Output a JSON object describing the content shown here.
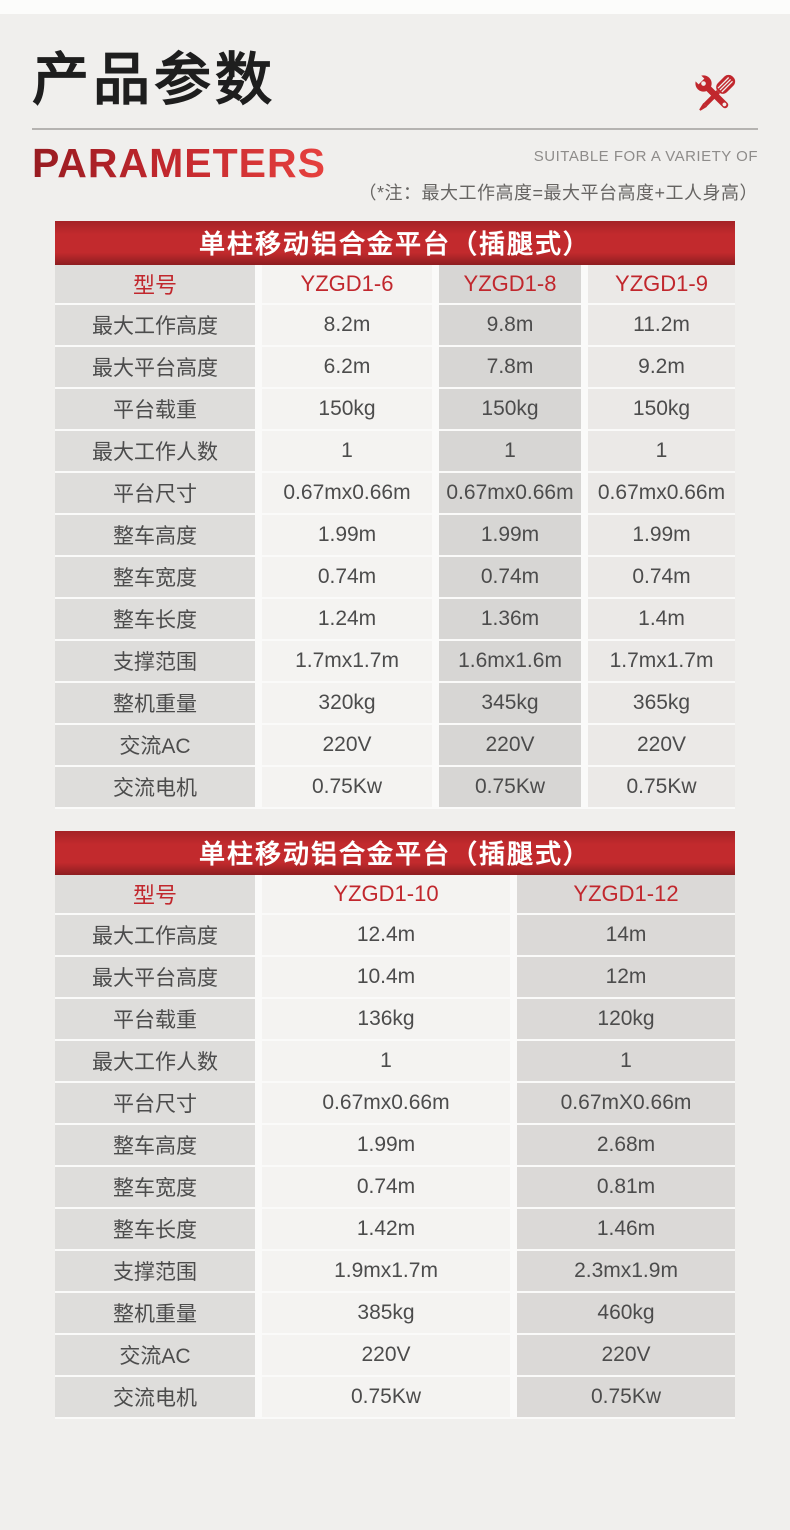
{
  "page": {
    "title_cn": "产品参数",
    "title_en": "PARAMETERS",
    "tagline": "SUITABLE FOR A VARIETY OF",
    "note": "（*注：最大工作高度=最大平台高度+工人身高）"
  },
  "colors": {
    "accent_red": "#c1272d",
    "band_top": "#a42226",
    "band_mid": "#c22a2d",
    "band_bottom": "#8d1d20",
    "page_bg": "#f0efed"
  },
  "icons": {
    "tools": "wrench-screwdriver-icon"
  },
  "tables": [
    {
      "title": "单柱移动铝合金平台（插腿式）",
      "model_label": "型号",
      "models": [
        "YZGD1-6",
        "YZGD1-8",
        "YZGD1-9"
      ],
      "col_colors": [
        "#dedddb",
        "#f4f3f1",
        "#d7d6d4",
        "#ebe9e7"
      ],
      "rows": [
        {
          "label": "最大工作高度",
          "values": [
            "8.2m",
            "9.8m",
            "11.2m"
          ]
        },
        {
          "label": "最大平台高度",
          "values": [
            "6.2m",
            "7.8m",
            "9.2m"
          ]
        },
        {
          "label": "平台载重",
          "values": [
            "150kg",
            "150kg",
            "150kg"
          ]
        },
        {
          "label": "最大工作人数",
          "values": [
            "1",
            "1",
            "1"
          ]
        },
        {
          "label": "平台尺寸",
          "values": [
            "0.67mx0.66m",
            "0.67mx0.66m",
            "0.67mx0.66m"
          ]
        },
        {
          "label": "整车高度",
          "values": [
            "1.99m",
            "1.99m",
            "1.99m"
          ]
        },
        {
          "label": "整车宽度",
          "values": [
            "0.74m",
            "0.74m",
            "0.74m"
          ]
        },
        {
          "label": "整车长度",
          "values": [
            "1.24m",
            "1.36m",
            "1.4m"
          ]
        },
        {
          "label": "支撑范围",
          "values": [
            "1.7mx1.7m",
            "1.6mx1.6m",
            "1.7mx1.7m"
          ]
        },
        {
          "label": "整机重量",
          "values": [
            "320kg",
            "345kg",
            "365kg"
          ]
        },
        {
          "label": "交流AC",
          "values": [
            "220V",
            "220V",
            "220V"
          ]
        },
        {
          "label": "交流电机",
          "values": [
            "0.75Kw",
            "0.75Kw",
            "0.75Kw"
          ]
        }
      ]
    },
    {
      "title": "单柱移动铝合金平台（插腿式）",
      "model_label": "型号",
      "models": [
        "YZGD1-10",
        "YZGD1-12"
      ],
      "col_colors": [
        "#dedddb",
        "#f4f3f1",
        "#dbd9d7"
      ],
      "rows": [
        {
          "label": "最大工作高度",
          "values": [
            "12.4m",
            "14m"
          ]
        },
        {
          "label": "最大平台高度",
          "values": [
            "10.4m",
            "12m"
          ]
        },
        {
          "label": "平台载重",
          "values": [
            "136kg",
            "120kg"
          ]
        },
        {
          "label": "最大工作人数",
          "values": [
            "1",
            "1"
          ]
        },
        {
          "label": "平台尺寸",
          "values": [
            "0.67mx0.66m",
            "0.67mX0.66m"
          ]
        },
        {
          "label": "整车高度",
          "values": [
            "1.99m",
            "2.68m"
          ]
        },
        {
          "label": "整车宽度",
          "values": [
            "0.74m",
            "0.81m"
          ]
        },
        {
          "label": "整车长度",
          "values": [
            "1.42m",
            "1.46m"
          ]
        },
        {
          "label": "支撑范围",
          "values": [
            "1.9mx1.7m",
            "2.3mx1.9m"
          ]
        },
        {
          "label": "整机重量",
          "values": [
            "385kg",
            "460kg"
          ]
        },
        {
          "label": "交流AC",
          "values": [
            "220V",
            "220V"
          ]
        },
        {
          "label": "交流电机",
          "values": [
            "0.75Kw",
            "0.75Kw"
          ]
        }
      ]
    }
  ]
}
